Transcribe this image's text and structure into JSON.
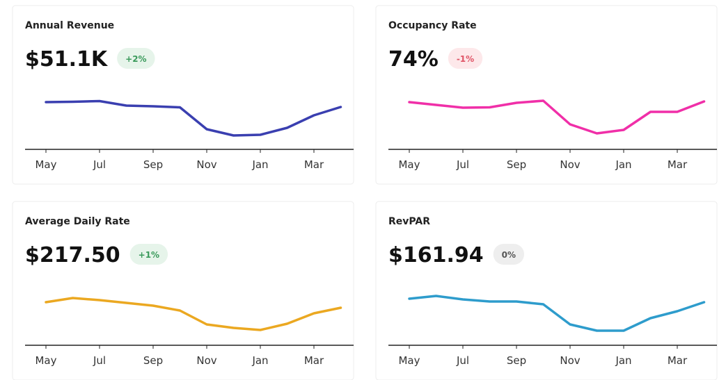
{
  "chart_data": [
    {
      "type": "line",
      "title": "Annual Revenue",
      "kpi": "$51.1K",
      "change": "+2%",
      "badge_color": "#e6f4ea",
      "badge_text_color": "#3a9a5b",
      "color": "#3a3fb0",
      "categories": [
        "May",
        null,
        "Jul",
        null,
        "Sep",
        null,
        "Nov",
        null,
        "Jan",
        null,
        "Mar",
        null
      ],
      "values": [
        67,
        67.5,
        68.5,
        62,
        61,
        59.5,
        28,
        19,
        20,
        30,
        48,
        60
      ],
      "ylim": [
        0,
        100
      ]
    },
    {
      "type": "line",
      "title": "Occupancy Rate",
      "kpi": "74%",
      "change": "-1%",
      "badge_color": "#fde8ea",
      "badge_text_color": "#e05567",
      "color": "#f02fa8",
      "categories": [
        "May",
        null,
        "Jul",
        null,
        "Sep",
        null,
        "Nov",
        null,
        "Jan",
        null,
        "Mar",
        null
      ],
      "values": [
        67,
        63,
        59,
        59.5,
        66,
        69,
        35,
        22,
        27,
        53,
        53,
        68
      ],
      "ylim": [
        0,
        100
      ]
    },
    {
      "type": "line",
      "title": "Average Daily Rate",
      "kpi": "$217.50",
      "change": "+1%",
      "badge_color": "#e6f4ea",
      "badge_text_color": "#3a9a5b",
      "color": "#eba821",
      "categories": [
        "May",
        null,
        "Jul",
        null,
        "Sep",
        null,
        "Nov",
        null,
        "Jan",
        null,
        "Mar",
        null
      ],
      "values": [
        61,
        67,
        64,
        60,
        56,
        49,
        29,
        24,
        21,
        30,
        45,
        53
      ],
      "ylim": [
        0,
        100
      ]
    },
    {
      "type": "line",
      "title": "RevPAR",
      "kpi": "$161.94",
      "change": "0%",
      "badge_color": "#eeeeee",
      "badge_text_color": "#555555",
      "color": "#2e9ccc",
      "categories": [
        "May",
        null,
        "Jul",
        null,
        "Sep",
        null,
        "Nov",
        null,
        "Jan",
        null,
        "Mar",
        null
      ],
      "values": [
        66,
        70,
        65,
        62,
        62,
        58,
        29,
        20,
        20,
        38,
        48,
        61
      ],
      "ylim": [
        0,
        100
      ]
    }
  ]
}
